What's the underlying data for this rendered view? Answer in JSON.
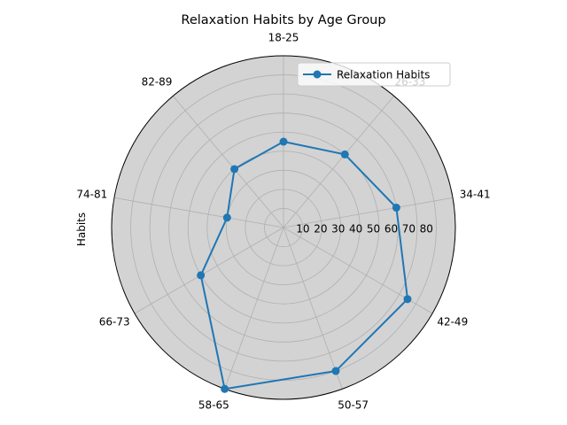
{
  "chart_data": {
    "type": "radar",
    "title": "Relaxation Habits by Age Group",
    "ylabel": "Habits",
    "categories": [
      "18-25",
      "26-33",
      "34-41",
      "42-49",
      "50-57",
      "58-65",
      "66-73",
      "74-81",
      "82-89"
    ],
    "series": [
      {
        "name": "Relaxation Habits",
        "values": [
          45,
          50,
          60,
          75,
          80,
          90,
          50,
          30,
          40
        ],
        "color": "#1f77b4"
      }
    ],
    "rlim": [
      0,
      90
    ],
    "rticks": [
      10,
      20,
      30,
      40,
      50,
      60,
      70,
      80
    ],
    "grid": true,
    "legend": "top-right",
    "background": "#d3d3d3"
  }
}
